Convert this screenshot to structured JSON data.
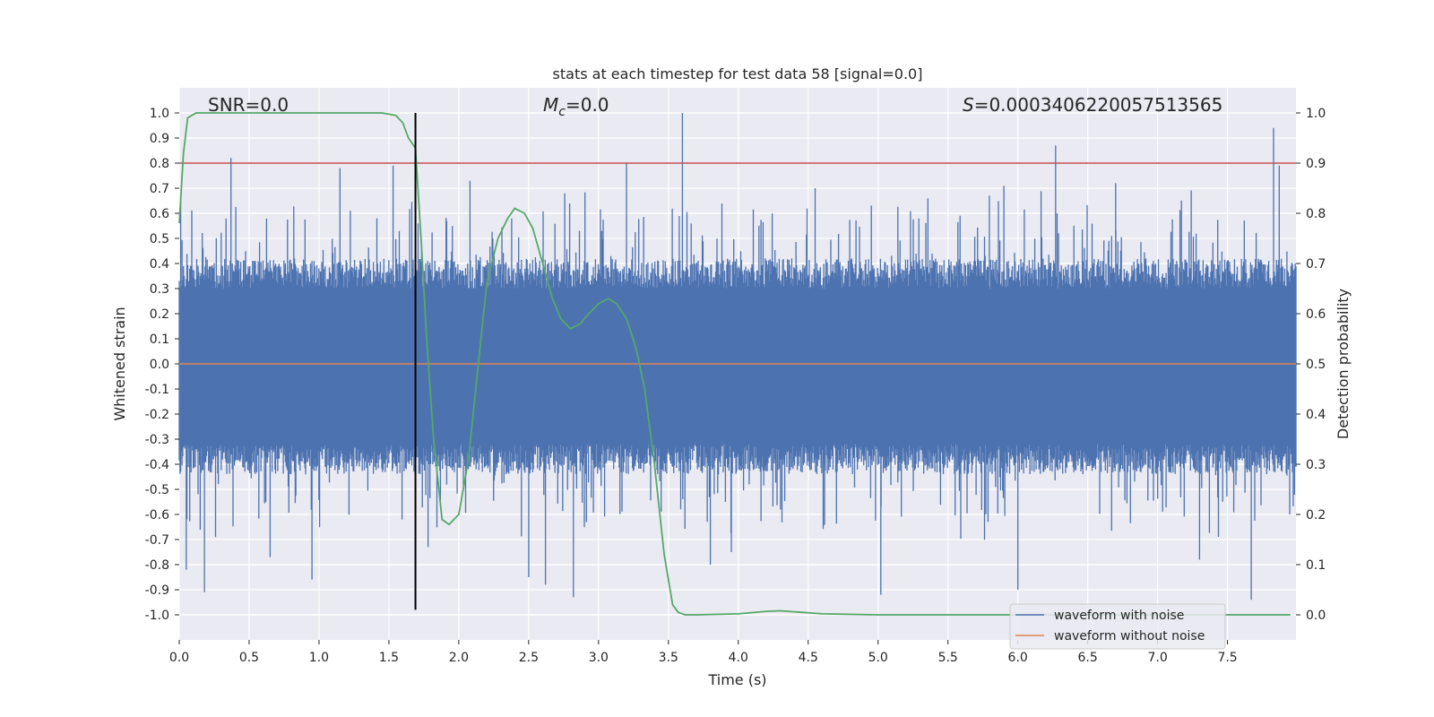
{
  "chart_data": {
    "type": "line",
    "title": "stats at each timestep for test data 58 [signal=0.0]",
    "xlabel": "Time (s)",
    "ylabel_left": "Whitened strain",
    "ylabel_right": "Detection probability",
    "xlim": [
      0.0,
      7.99
    ],
    "ylim_left": [
      -1.1,
      1.1
    ],
    "ylim_right": [
      -0.05,
      1.05
    ],
    "xticks": [
      0.0,
      0.5,
      1.0,
      1.5,
      2.0,
      2.5,
      3.0,
      3.5,
      4.0,
      4.5,
      5.0,
      5.5,
      6.0,
      6.5,
      7.0,
      7.5
    ],
    "xtick_labels": [
      "0.0",
      "0.5",
      "1.0",
      "1.5",
      "2.0",
      "2.5",
      "3.0",
      "3.5",
      "4.0",
      "4.5",
      "5.0",
      "5.5",
      "6.0",
      "6.5",
      "7.0",
      "7.5"
    ],
    "yticks_left": [
      1.0,
      0.9,
      0.8,
      0.7,
      0.6,
      0.5,
      0.4,
      0.3,
      0.2,
      0.1,
      0.0,
      -0.1,
      -0.2,
      -0.3,
      -0.4,
      -0.5,
      -0.6,
      -0.7,
      -0.8,
      -0.9,
      -1.0
    ],
    "yticks_left_labels": [
      "1.0",
      "0.9",
      "0.8",
      "0.7",
      "0.6",
      "0.5",
      "0.4",
      "0.3",
      "0.2",
      "0.1",
      "0.0",
      "-0.1",
      "-0.2",
      "-0.3",
      "-0.4",
      "-0.5",
      "-0.6",
      "-0.7",
      "-0.8",
      "-0.9",
      "-1.0"
    ],
    "yticks_right": [
      1.0,
      0.9,
      0.8,
      0.7,
      0.6,
      0.5,
      0.4,
      0.3,
      0.2,
      0.1,
      0.0
    ],
    "yticks_right_labels": [
      "1.0",
      "0.9",
      "0.8",
      "0.7",
      "0.6",
      "0.5",
      "0.4",
      "0.3",
      "0.2",
      "0.1",
      "0.0"
    ],
    "annotations": {
      "snr": "SNR=0.0",
      "mc_symbol": "M",
      "mc_sub": "c",
      "mc_value": "=0.0",
      "s_symbol": "S",
      "s_value": "=0.0003406220057513565"
    },
    "threshold": {
      "axis": "right",
      "value": 0.9,
      "color": "#c44e52"
    },
    "vertical_marker": {
      "x": 1.69,
      "y_from": -0.98,
      "y_to": 1.0,
      "color": "#000000"
    },
    "series": [
      {
        "name": "waveform with noise",
        "axis": "left",
        "color": "#4c72b0",
        "description": "dense random noise, roughly uniform; band mostly within [-0.45, 0.42] with spikes",
        "band": [
          -0.4,
          0.38
        ],
        "spikes": [
          {
            "x": 0.01,
            "y": 0.65
          },
          {
            "x": 0.05,
            "y": -0.82
          },
          {
            "x": 0.18,
            "y": -0.91
          },
          {
            "x": 0.26,
            "y": -0.69
          },
          {
            "x": 0.37,
            "y": 0.82
          },
          {
            "x": 0.65,
            "y": -0.77
          },
          {
            "x": 0.95,
            "y": -0.86
          },
          {
            "x": 1.15,
            "y": 0.78
          },
          {
            "x": 1.53,
            "y": 0.79
          },
          {
            "x": 1.78,
            "y": -0.73
          },
          {
            "x": 2.08,
            "y": 0.73
          },
          {
            "x": 2.5,
            "y": -0.85
          },
          {
            "x": 2.62,
            "y": -0.88
          },
          {
            "x": 2.82,
            "y": -0.93
          },
          {
            "x": 3.2,
            "y": 0.8
          },
          {
            "x": 3.6,
            "y": 1.0
          },
          {
            "x": 3.8,
            "y": -0.8
          },
          {
            "x": 5.02,
            "y": -0.92
          },
          {
            "x": 6.27,
            "y": 0.87
          },
          {
            "x": 6.0,
            "y": -0.9
          },
          {
            "x": 7.67,
            "y": -0.94
          },
          {
            "x": 7.83,
            "y": 0.94
          },
          {
            "x": 7.87,
            "y": 0.79
          },
          {
            "x": 6.7,
            "y": 0.72
          },
          {
            "x": 4.55,
            "y": 0.7
          },
          {
            "x": 5.9,
            "y": 0.71
          },
          {
            "x": 3.95,
            "y": -0.75
          },
          {
            "x": 7.3,
            "y": -0.78
          }
        ]
      },
      {
        "name": "waveform without noise",
        "axis": "left",
        "color": "#dd8452",
        "x": [
          0.0,
          7.99
        ],
        "y": [
          0.0,
          0.0
        ]
      },
      {
        "name": "detection probability",
        "axis": "right",
        "color": "#55a868",
        "x": [
          0.0,
          0.03,
          0.06,
          0.12,
          0.2,
          0.4,
          0.8,
          1.2,
          1.45,
          1.55,
          1.6,
          1.64,
          1.69,
          1.73,
          1.77,
          1.82,
          1.88,
          1.93,
          2.0,
          2.07,
          2.14,
          2.2,
          2.28,
          2.35,
          2.4,
          2.47,
          2.53,
          2.6,
          2.67,
          2.73,
          2.8,
          2.87,
          2.93,
          3.0,
          3.07,
          3.13,
          3.2,
          3.27,
          3.33,
          3.4,
          3.47,
          3.53,
          3.57,
          3.62,
          3.7,
          4.0,
          4.2,
          4.3,
          4.4,
          4.6,
          5.0,
          6.0,
          7.0,
          7.95
        ],
        "y": [
          0.78,
          0.92,
          0.99,
          1.0,
          1.0,
          1.0,
          1.0,
          1.0,
          1.0,
          0.995,
          0.98,
          0.95,
          0.93,
          0.75,
          0.55,
          0.35,
          0.19,
          0.18,
          0.2,
          0.31,
          0.5,
          0.66,
          0.75,
          0.79,
          0.81,
          0.8,
          0.77,
          0.7,
          0.63,
          0.59,
          0.57,
          0.58,
          0.6,
          0.62,
          0.63,
          0.62,
          0.59,
          0.53,
          0.45,
          0.3,
          0.12,
          0.02,
          0.005,
          0.0,
          0.0,
          0.002,
          0.007,
          0.008,
          0.006,
          0.002,
          0.0,
          0.0,
          0.0,
          0.0
        ]
      }
    ],
    "legend": {
      "placement": "lower-right",
      "entries": [
        {
          "label": "waveform with noise",
          "color": "#4c72b0"
        },
        {
          "label": "waveform without noise",
          "color": "#dd8452"
        }
      ]
    },
    "grid": true,
    "colors": {
      "plot_bg": "#eaeaf2",
      "grid": "#ffffff",
      "text": "#262626"
    }
  }
}
